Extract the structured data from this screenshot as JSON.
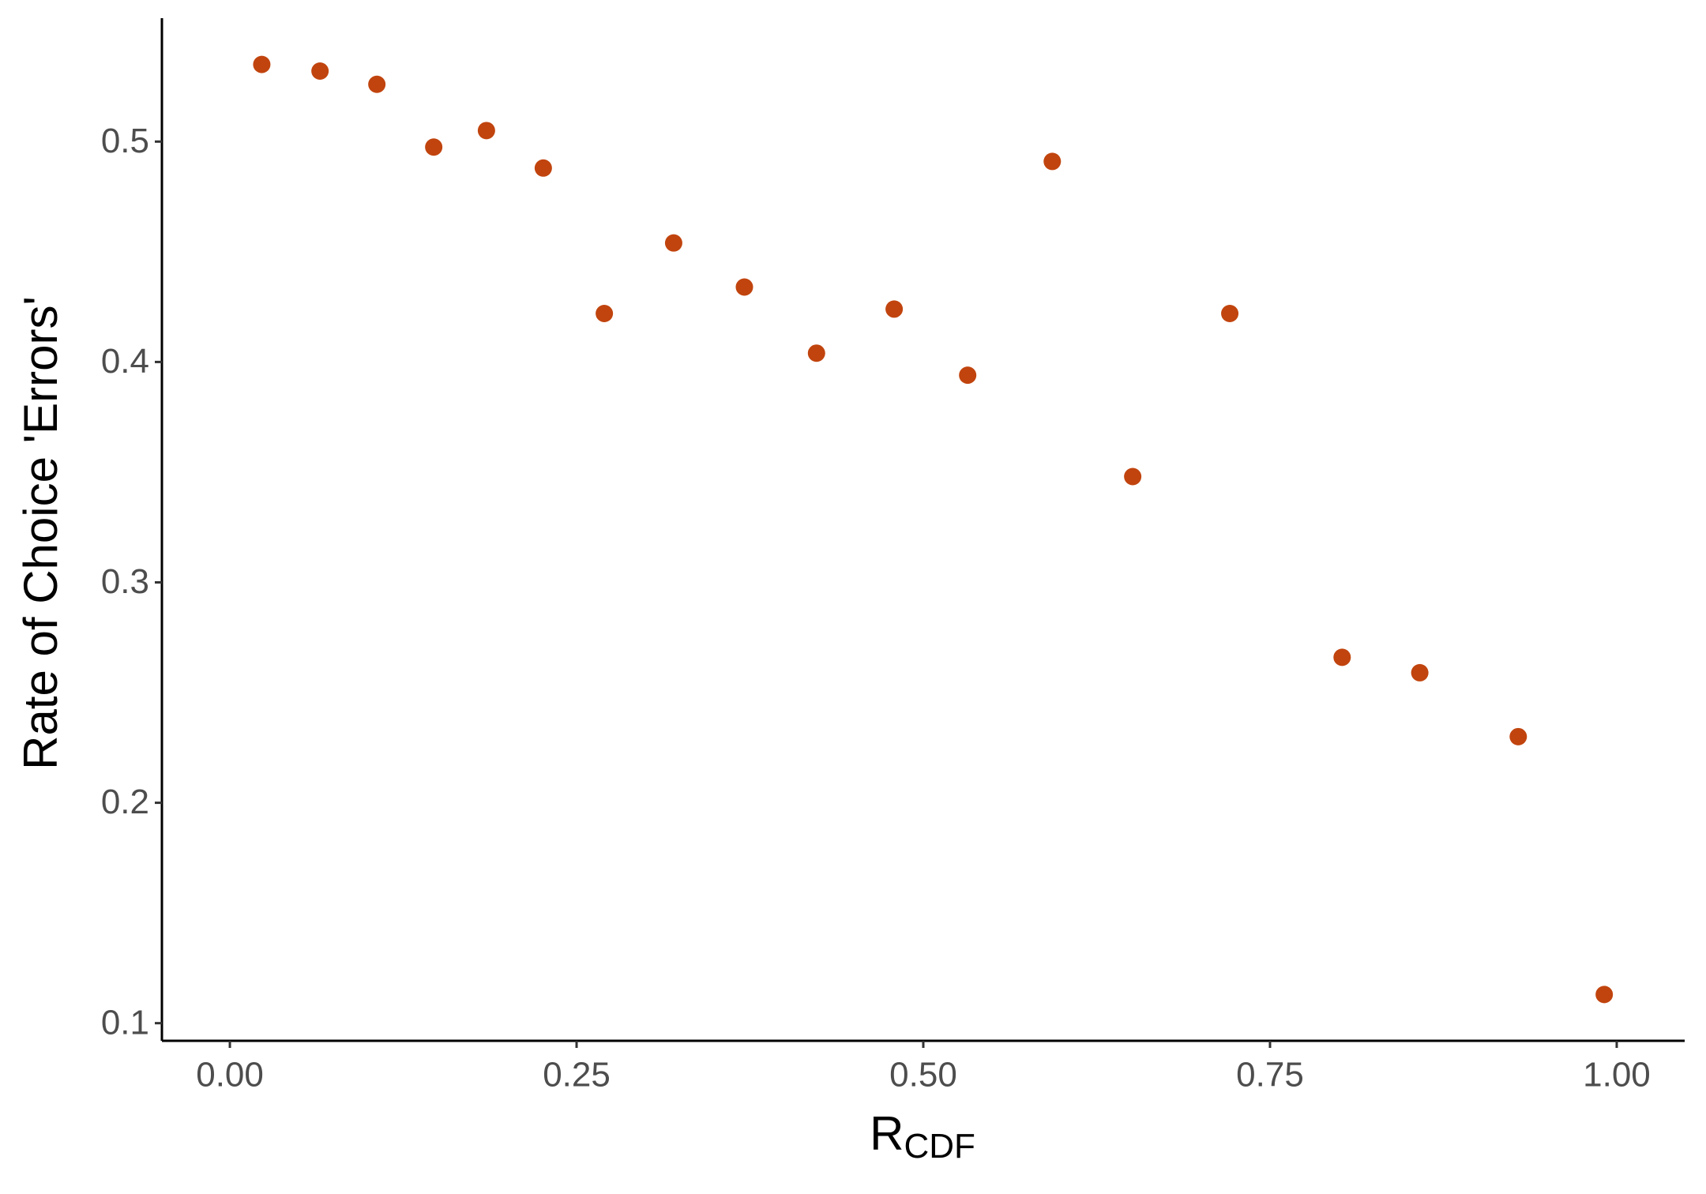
{
  "chart_data": {
    "type": "scatter",
    "x_label": {
      "main": "R",
      "sub": "CDF"
    },
    "y_label": "Rate of Choice 'Errors'",
    "x": [
      0.023,
      0.065,
      0.106,
      0.147,
      0.185,
      0.226,
      0.27,
      0.32,
      0.371,
      0.423,
      0.479,
      0.532,
      0.593,
      0.651,
      0.721,
      0.802,
      0.858,
      0.929,
      0.991
    ],
    "values": [
      0.535,
      0.532,
      0.526,
      0.4975,
      0.505,
      0.488,
      0.422,
      0.454,
      0.434,
      0.404,
      0.424,
      0.394,
      0.491,
      0.348,
      0.422,
      0.266,
      0.259,
      0.23,
      0.113
    ],
    "color": "#c1440e",
    "xlim": [
      -0.049,
      1.049
    ],
    "ylim": [
      0.092,
      0.556
    ],
    "xticks": [
      {
        "value": 0,
        "label": "0.00"
      },
      {
        "value": 0.25,
        "label": "0.25"
      },
      {
        "value": 0.5,
        "label": "0.50"
      },
      {
        "value": 0.75,
        "label": "0.75"
      },
      {
        "value": 1,
        "label": "1.00"
      }
    ],
    "yticks": [
      0.1,
      0.2,
      0.3,
      0.4,
      0.5
    ],
    "grid": false
  }
}
